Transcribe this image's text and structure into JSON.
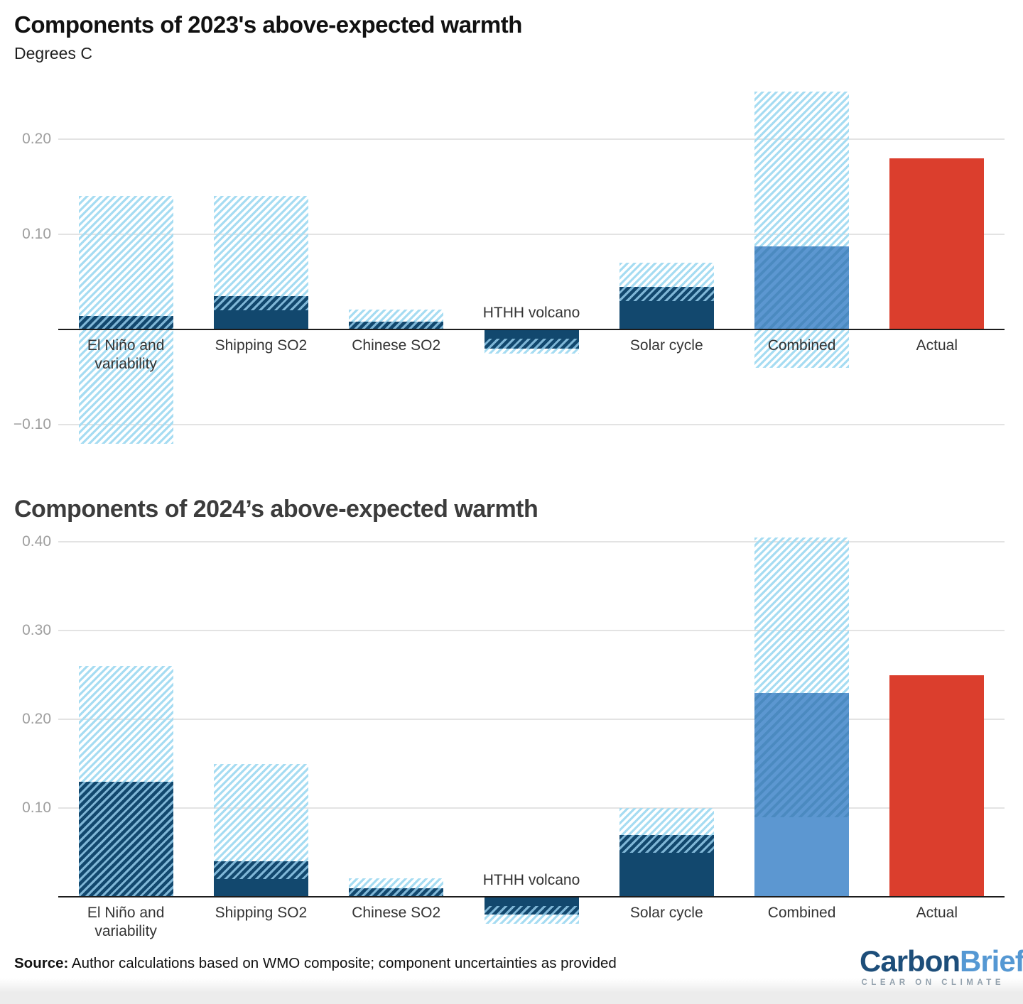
{
  "page": {
    "title_2023": "Components of 2023's above-expected warmth",
    "subtitle_2023": "Degrees C",
    "title_2024": "Components of 2024’s above-expected warmth"
  },
  "source": {
    "label": "Source:",
    "text": " Author calculations based on WMO composite; component uncertainties as provided"
  },
  "logo": {
    "part1": "Carbon",
    "part2": "Brief",
    "tagline": "CLEAR ON CLIMATE"
  },
  "colors": {
    "dark_navy": "#12486e",
    "medium_blue": "#5c97d1",
    "light_blue_hatch": "#a6dcf2",
    "actual_red": "#db3e2d",
    "gridline": "#e3e3e3",
    "axis": "#1c1c1c",
    "tick_text": "#9e9e9e",
    "category_text": "#333333"
  },
  "chart_data": [
    {
      "type": "bar",
      "title": "Components of 2023's above-expected warmth",
      "subtitle": "Degrees C",
      "ylabel": "Degrees C",
      "ylim": [
        -0.13,
        0.26
      ],
      "grid": true,
      "legend_position": "none",
      "ticks": [
        {
          "value": 0.2,
          "label": "0.20"
        },
        {
          "value": 0.1,
          "label": "0.10"
        },
        {
          "value": -0.1,
          "label": "−0.10"
        }
      ],
      "categories": [
        "El Niño and variability",
        "Shipping SO2",
        "Chinese SO2",
        "HTHH volcano",
        "Solar cycle",
        "Combined",
        "Actual"
      ],
      "bars": [
        {
          "category": "El Niño and variability",
          "label_position": "below",
          "segments": [
            {
              "style": "hatch-light",
              "from": -0.12,
              "to": 0.14
            },
            {
              "style": "hatch-dark",
              "from": 0,
              "to": 0.014
            }
          ]
        },
        {
          "category": "Shipping SO2",
          "label_position": "below",
          "segments": [
            {
              "style": "hatch-light",
              "from": 0,
              "to": 0.14
            },
            {
              "style": "hatch-dark",
              "from": 0.02,
              "to": 0.035
            },
            {
              "style": "solid-dark",
              "from": 0,
              "to": 0.02
            }
          ]
        },
        {
          "category": "Chinese SO2",
          "label_position": "below",
          "segments": [
            {
              "style": "hatch-light",
              "from": 0,
              "to": 0.021
            },
            {
              "style": "hatch-dark",
              "from": 0,
              "to": 0.008
            }
          ]
        },
        {
          "category": "HTHH volcano",
          "label_position": "above",
          "segments": [
            {
              "style": "hatch-light",
              "from": -0.025,
              "to": 0
            },
            {
              "style": "hatch-dark",
              "from": -0.02,
              "to": -0.01
            },
            {
              "style": "solid-dark",
              "from": -0.01,
              "to": 0
            }
          ]
        },
        {
          "category": "Solar cycle",
          "label_position": "below",
          "segments": [
            {
              "style": "hatch-light",
              "from": 0,
              "to": 0.07
            },
            {
              "style": "hatch-dark",
              "from": 0.03,
              "to": 0.045
            },
            {
              "style": "solid-dark",
              "from": 0,
              "to": 0.03
            }
          ]
        },
        {
          "category": "Combined",
          "label_position": "below",
          "segments": [
            {
              "style": "hatch-light",
              "from": -0.04,
              "to": 0.25
            },
            {
              "style": "hatch-mid",
              "from": 0,
              "to": 0.087
            }
          ]
        },
        {
          "category": "Actual",
          "label_position": "below",
          "segments": [
            {
              "style": "solid-red",
              "from": 0,
              "to": 0.18
            }
          ]
        }
      ]
    },
    {
      "type": "bar",
      "title": "Components of 2024’s above-expected warmth",
      "subtitle": "",
      "ylabel": "Degrees C",
      "ylim": [
        -0.04,
        0.41
      ],
      "grid": true,
      "legend_position": "none",
      "ticks": [
        {
          "value": 0.4,
          "label": "0.40"
        },
        {
          "value": 0.3,
          "label": "0.30"
        },
        {
          "value": 0.2,
          "label": "0.20"
        },
        {
          "value": 0.1,
          "label": "0.10"
        }
      ],
      "categories": [
        "El Niño and variability",
        "Shipping SO2",
        "Chinese SO2",
        "HTHH volcano",
        "Solar cycle",
        "Combined",
        "Actual"
      ],
      "bars": [
        {
          "category": "El Niño and variability",
          "label_position": "below",
          "segments": [
            {
              "style": "hatch-light",
              "from": 0,
              "to": 0.26
            },
            {
              "style": "hatch-dark",
              "from": 0,
              "to": 0.13
            }
          ]
        },
        {
          "category": "Shipping SO2",
          "label_position": "below",
          "segments": [
            {
              "style": "hatch-light",
              "from": 0,
              "to": 0.15
            },
            {
              "style": "hatch-dark",
              "from": 0.02,
              "to": 0.04
            },
            {
              "style": "solid-dark",
              "from": 0,
              "to": 0.02
            }
          ]
        },
        {
          "category": "Chinese SO2",
          "label_position": "below",
          "segments": [
            {
              "style": "hatch-light",
              "from": 0,
              "to": 0.021
            },
            {
              "style": "hatch-dark",
              "from": 0,
              "to": 0.01
            }
          ]
        },
        {
          "category": "HTHH volcano",
          "label_position": "above",
          "segments": [
            {
              "style": "hatch-light",
              "from": -0.03,
              "to": 0
            },
            {
              "style": "hatch-dark",
              "from": -0.02,
              "to": -0.01
            },
            {
              "style": "solid-dark",
              "from": -0.01,
              "to": 0
            }
          ]
        },
        {
          "category": "Solar cycle",
          "label_position": "below",
          "segments": [
            {
              "style": "hatch-light",
              "from": 0,
              "to": 0.1
            },
            {
              "style": "hatch-dark",
              "from": 0.05,
              "to": 0.07
            },
            {
              "style": "solid-dark",
              "from": 0,
              "to": 0.05
            }
          ]
        },
        {
          "category": "Combined",
          "label_position": "below",
          "segments": [
            {
              "style": "hatch-light",
              "from": 0,
              "to": 0.405
            },
            {
              "style": "hatch-mid",
              "from": 0.09,
              "to": 0.23
            },
            {
              "style": "solid-mid",
              "from": 0,
              "to": 0.09
            }
          ]
        },
        {
          "category": "Actual",
          "label_position": "below",
          "segments": [
            {
              "style": "solid-red",
              "from": 0,
              "to": 0.25
            }
          ]
        }
      ]
    }
  ]
}
